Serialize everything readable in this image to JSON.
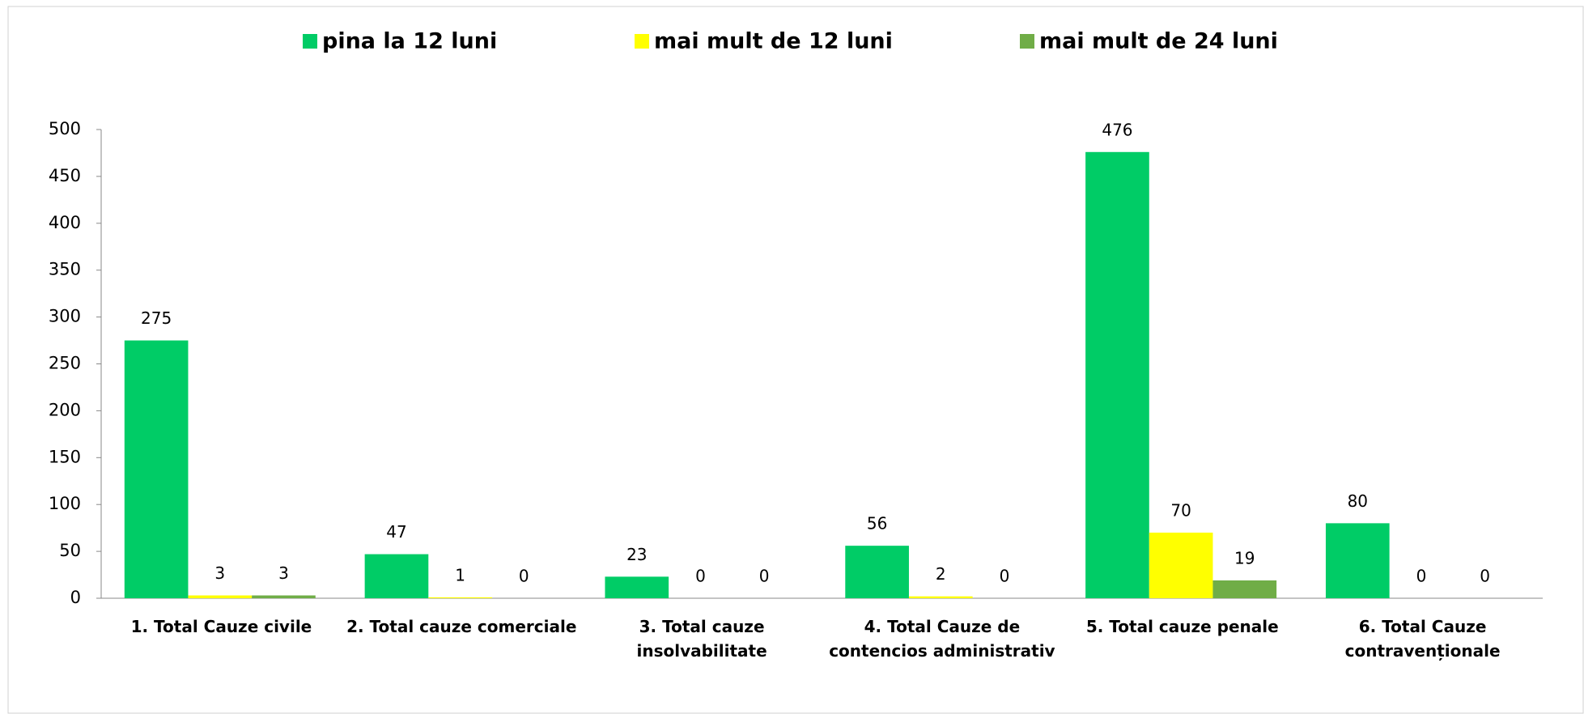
{
  "chart_data": {
    "type": "bar",
    "categories": [
      "1. Total Cauze civile",
      "2. Total cauze comerciale",
      "3. Total cauze insolvabilitate",
      "4. Total Cauze de contencios administrativ",
      "5. Total cauze penale",
      "6. Total Cauze contravenționale"
    ],
    "series": [
      {
        "name": "pina la 12 luni",
        "color": "#00cc66",
        "values": [
          275,
          47,
          23,
          56,
          476,
          80
        ]
      },
      {
        "name": "mai mult de 12 luni",
        "color": "#ffff00",
        "values": [
          3,
          1,
          0,
          2,
          70,
          0
        ]
      },
      {
        "name": "mai mult de 24 luni",
        "color": "#70ad47",
        "values": [
          3,
          0,
          0,
          0,
          19,
          0
        ]
      }
    ],
    "ylim": [
      0,
      500
    ],
    "yticks": [
      0,
      50,
      100,
      150,
      200,
      250,
      300,
      350,
      400,
      450,
      500
    ],
    "legend": "top",
    "grid": false
  }
}
